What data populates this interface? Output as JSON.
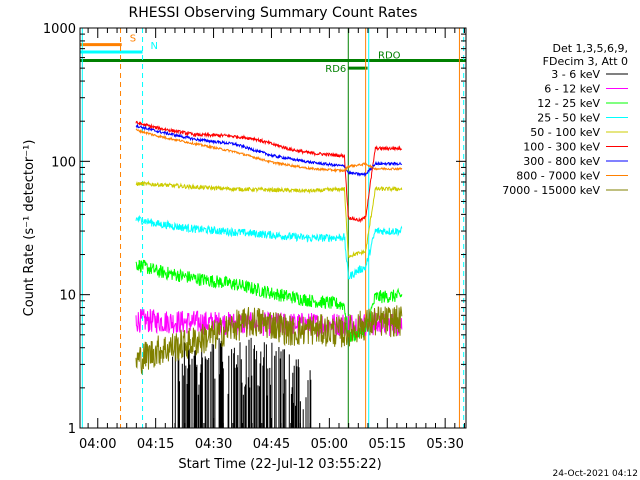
{
  "chart_data": {
    "type": "line",
    "title": "RHESSI Observing Summary Count Rates",
    "xlabel": "Start Time (22-Jul-12 03:55:22)",
    "ylabel": "Count Rate (s⁻¹ detector⁻¹)",
    "yscale": "log",
    "ylim": [
      1,
      1000
    ],
    "xlim_minutes_after_start": [
      0,
      100
    ],
    "x_tick_labels": [
      {
        "label": "04:00",
        "minutes": 4.6
      },
      {
        "label": "04:15",
        "minutes": 19.6
      },
      {
        "label": "04:30",
        "minutes": 34.6
      },
      {
        "label": "04:45",
        "minutes": 49.6
      },
      {
        "label": "05:00",
        "minutes": 64.6
      },
      {
        "label": "05:15",
        "minutes": 79.6
      },
      {
        "label": "05:30",
        "minutes": 94.6
      }
    ],
    "y_tick_labels": [
      {
        "label": "1",
        "value": 1
      },
      {
        "label": "10",
        "value": 10
      },
      {
        "label": "100",
        "value": 100
      },
      {
        "label": "1000",
        "value": 1000
      }
    ],
    "legend": {
      "placement": "right",
      "header": [
        "Det 1,3,5,6,9,",
        "FDecim 3, Att 0"
      ]
    },
    "series": [
      {
        "name": "3 - 6 keV",
        "color": "#000000",
        "points": [
          [
            23.8,
            1.6
          ],
          [
            30,
            1.7
          ],
          [
            40,
            1.8
          ],
          [
            50,
            1.6
          ],
          [
            55,
            1.4
          ],
          [
            60,
            1.2
          ]
        ],
        "noise": 0.3
      },
      {
        "name": "6 - 12 keV",
        "color": "#ff00ff",
        "points": [
          [
            14.5,
            6.4
          ],
          [
            30,
            6.2
          ],
          [
            45,
            6.0
          ],
          [
            60,
            6.0
          ],
          [
            68.5,
            6.0
          ],
          [
            71.5,
            6.0
          ],
          [
            78.5,
            6.0
          ],
          [
            83.5,
            6.0
          ]
        ],
        "noise": 0.09
      },
      {
        "name": "12 - 25 keV",
        "color": "#00ff00",
        "points": [
          [
            14.5,
            17
          ],
          [
            20,
            15
          ],
          [
            30,
            13.2
          ],
          [
            40,
            12
          ],
          [
            50,
            10.2
          ],
          [
            60,
            9.0
          ],
          [
            68.5,
            8.4
          ],
          [
            69.5,
            4.8
          ],
          [
            72.5,
            5.2
          ],
          [
            74,
            5.4
          ],
          [
            76.5,
            9.6
          ],
          [
            83.5,
            9.8
          ]
        ],
        "noise": 0.05
      },
      {
        "name": "25 - 50 keV",
        "color": "#00ffff",
        "points": [
          [
            14.5,
            37
          ],
          [
            20,
            34
          ],
          [
            30,
            31
          ],
          [
            40,
            29.5
          ],
          [
            50,
            28
          ],
          [
            60,
            26.5
          ],
          [
            68.5,
            27
          ],
          [
            69.5,
            13.5
          ],
          [
            72.5,
            15.5
          ],
          [
            74,
            16
          ],
          [
            76.5,
            30
          ],
          [
            83.5,
            30
          ]
        ],
        "noise": 0.03
      },
      {
        "name": "50 - 100 keV",
        "color": "#cccc00",
        "points": [
          [
            14.5,
            68
          ],
          [
            20,
            67
          ],
          [
            30,
            64
          ],
          [
            40,
            62
          ],
          [
            50,
            61
          ],
          [
            60,
            60
          ],
          [
            68.5,
            62
          ],
          [
            69.5,
            19.5
          ],
          [
            72.5,
            20.5
          ],
          [
            74,
            21
          ],
          [
            76.5,
            62
          ],
          [
            83.5,
            62
          ]
        ],
        "noise": 0.015
      },
      {
        "name": "100 - 300 keV",
        "color": "#ff0000",
        "points": [
          [
            14.5,
            195
          ],
          [
            20,
            178
          ],
          [
            30,
            158
          ],
          [
            38,
            156
          ],
          [
            45,
            148
          ],
          [
            55,
            122
          ],
          [
            60,
            115
          ],
          [
            68.5,
            110
          ],
          [
            69.5,
            38
          ],
          [
            72.5,
            36
          ],
          [
            74,
            38
          ],
          [
            76.5,
            125
          ],
          [
            83.5,
            125
          ]
        ],
        "noise": 0.012
      },
      {
        "name": "300 - 800 keV",
        "color": "#0000ff",
        "points": [
          [
            14.5,
            185
          ],
          [
            20,
            168
          ],
          [
            30,
            146
          ],
          [
            40,
            135
          ],
          [
            50,
            110
          ],
          [
            60,
            98
          ],
          [
            68.5,
            92
          ],
          [
            69.5,
            82
          ],
          [
            72.5,
            80
          ],
          [
            74,
            80
          ],
          [
            76.5,
            96
          ],
          [
            83.5,
            96
          ]
        ],
        "noise": 0.01
      },
      {
        "name": "800 - 7000 keV",
        "color": "#ff8000",
        "points": [
          [
            14.5,
            172
          ],
          [
            20,
            155
          ],
          [
            30,
            135
          ],
          [
            40,
            118
          ],
          [
            50,
            98
          ],
          [
            60,
            88
          ],
          [
            68.5,
            85
          ],
          [
            69.5,
            92
          ],
          [
            72.5,
            94
          ],
          [
            74,
            96
          ],
          [
            76.5,
            88
          ],
          [
            83.5,
            88
          ]
        ],
        "noise": 0.008
      },
      {
        "name": "7000 - 15000 keV",
        "color": "#808000",
        "points": [
          [
            14.5,
            3.2
          ],
          [
            20,
            3.8
          ],
          [
            28,
            4.3
          ],
          [
            35,
            5.0
          ],
          [
            40,
            5.8
          ],
          [
            45,
            6.3
          ],
          [
            50,
            6.0
          ],
          [
            55,
            5.3
          ],
          [
            60,
            5.5
          ],
          [
            68.5,
            5.2
          ],
          [
            72.5,
            5.8
          ],
          [
            76.5,
            6.3
          ],
          [
            83.5,
            6.3
          ]
        ],
        "noise": 0.12
      }
    ],
    "flag_bars": [
      {
        "label": "S",
        "color": "#ff8000",
        "minutes": [
          0,
          10.8
        ],
        "level": 750
      },
      {
        "label": "N",
        "color": "#00ffff",
        "minutes": [
          0,
          16.2
        ],
        "level": 660
      },
      {
        "label": "RDO",
        "color": "#008000",
        "minutes": [
          0,
          100
        ],
        "level": 570
      },
      {
        "label": "RD6",
        "color": "#008000",
        "minutes": [
          69.5,
          74.5
        ],
        "level": 500
      }
    ],
    "vertical_lines": [
      {
        "color": "#ff8000",
        "minutes": 10.5,
        "dash": true
      },
      {
        "color": "#00ffff",
        "minutes": 16.2,
        "dash": true
      },
      {
        "color": "#00ffff",
        "minutes": 0.6,
        "dash": false
      },
      {
        "color": "#008000",
        "minutes": 69.5,
        "dash": false
      },
      {
        "color": "#ff8000",
        "minutes": 74.0,
        "dash": false
      },
      {
        "color": "#00ffff",
        "minutes": 74.8,
        "dash": false
      },
      {
        "color": "#ff8000",
        "minutes": 98.3,
        "dash": false
      },
      {
        "color": "#00ffff",
        "minutes": 99.4,
        "dash": true
      }
    ]
  },
  "footer_date": "24-Oct-2021 04:12"
}
